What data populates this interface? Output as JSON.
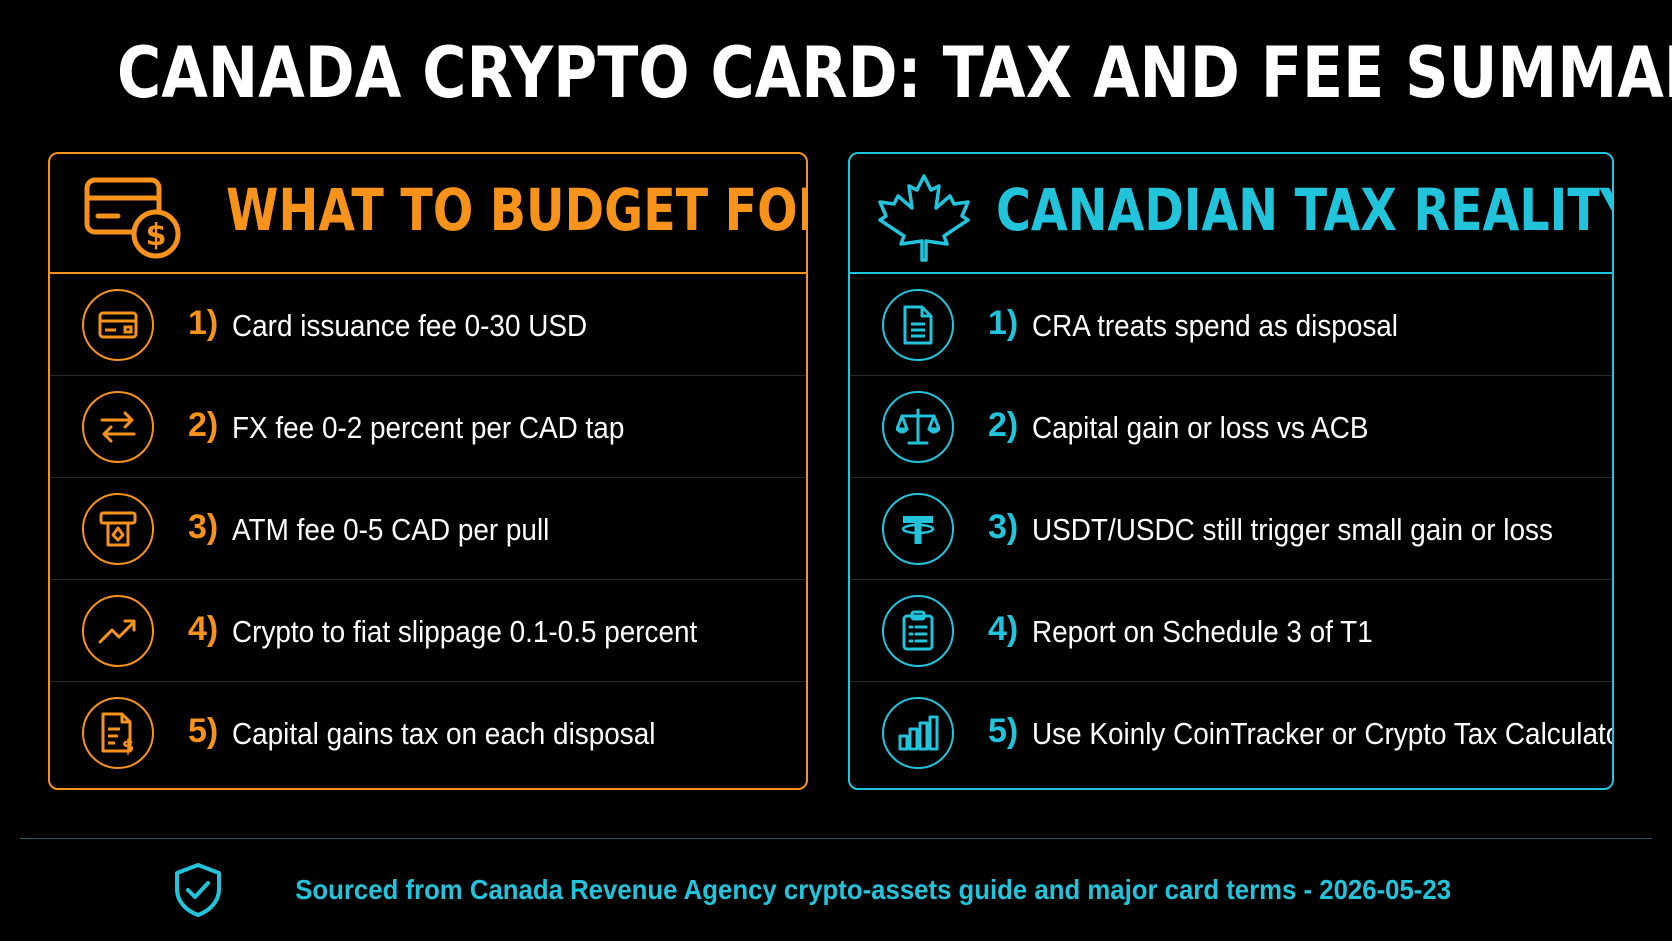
{
  "title": "CANADA CRYPTO CARD: TAX AND FEE SUMMARY",
  "colors": {
    "accent_orange": "#f7931a",
    "accent_cyan": "#22c4dc",
    "background": "#000000"
  },
  "budget": {
    "heading": "WHAT TO BUDGET FOR",
    "icon": "card-dollar-icon",
    "items": [
      {
        "num": "1)",
        "text": "Card issuance fee 0-30 USD",
        "icon": "credit-card-icon"
      },
      {
        "num": "2)",
        "text": "FX fee 0-2 percent per CAD tap",
        "icon": "exchange-arrows-icon"
      },
      {
        "num": "3)",
        "text": "ATM fee 0-5 CAD per pull",
        "icon": "atm-icon"
      },
      {
        "num": "4)",
        "text": "Crypto to fiat slippage 0.1-0.5 percent",
        "icon": "trend-up-icon"
      },
      {
        "num": "5)",
        "text": "Capital gains tax on each disposal",
        "icon": "tax-document-icon"
      }
    ]
  },
  "tax": {
    "heading": "CANADIAN TAX REALITY",
    "icon": "maple-leaf-icon",
    "items": [
      {
        "num": "1)",
        "text": "CRA treats spend as disposal",
        "icon": "document-icon"
      },
      {
        "num": "2)",
        "text": "Capital gain or loss vs ACB",
        "icon": "scales-icon"
      },
      {
        "num": "3)",
        "text": "USDT/USDC still trigger small gain or loss",
        "icon": "tether-icon"
      },
      {
        "num": "4)",
        "text": "Report on Schedule 3 of T1",
        "icon": "clipboard-icon"
      },
      {
        "num": "5)",
        "text": "Use Koinly CoinTracker or Crypto Tax Calculator",
        "icon": "bar-chart-icon"
      }
    ]
  },
  "footer": {
    "text": "Sourced from Canada Revenue Agency crypto-assets guide and major card terms - 2026-05-23",
    "icon": "shield-check-icon"
  }
}
